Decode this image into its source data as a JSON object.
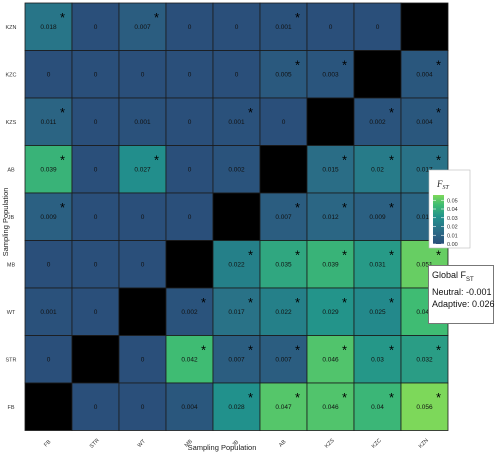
{
  "chart_data": {
    "type": "heatmap",
    "title": "",
    "xlabel": "Sampling Population",
    "ylabel": "Sampling Population",
    "x_categories": [
      "FB",
      "STR",
      "WT",
      "MB",
      "JB",
      "AB",
      "KZS",
      "KZC",
      "KZN"
    ],
    "y_categories": [
      "KZN",
      "KZC",
      "KZS",
      "AB",
      "JB",
      "MB",
      "WT",
      "STR",
      "FB"
    ],
    "rows": [
      {
        "pop": "KZN",
        "labels": [
          "0.018",
          "0",
          "0.007",
          "0",
          "0",
          "0.001",
          "0",
          "0",
          null
        ],
        "values": [
          0.018,
          0,
          0.007,
          0,
          0,
          0.001,
          0,
          0,
          null
        ],
        "stars": [
          true,
          false,
          true,
          false,
          false,
          true,
          false,
          false,
          false
        ]
      },
      {
        "pop": "KZC",
        "labels": [
          "0",
          "0",
          "0",
          "0",
          "0",
          "0.005",
          "0.003",
          null,
          "0.004"
        ],
        "values": [
          0,
          0,
          0,
          0,
          0,
          0.005,
          0.003,
          null,
          0.004
        ],
        "stars": [
          false,
          false,
          false,
          false,
          false,
          true,
          true,
          false,
          true
        ]
      },
      {
        "pop": "KZS",
        "labels": [
          "0.011",
          "0",
          "0.001",
          "0",
          "0.001",
          "0",
          null,
          "0.002",
          "0.004"
        ],
        "values": [
          0.011,
          0,
          0.001,
          0,
          0.001,
          0,
          null,
          0.002,
          0.004
        ],
        "stars": [
          true,
          false,
          false,
          false,
          true,
          false,
          false,
          true,
          true
        ]
      },
      {
        "pop": "AB",
        "labels": [
          "0.039",
          "0",
          "0.027",
          "0",
          "0.002",
          null,
          "0.015",
          "0.02",
          "0.017"
        ],
        "values": [
          0.039,
          0,
          0.027,
          0,
          0.002,
          null,
          0.015,
          0.02,
          0.017
        ],
        "stars": [
          true,
          false,
          true,
          false,
          false,
          false,
          true,
          true,
          true
        ]
      },
      {
        "pop": "JB",
        "labels": [
          "0.009",
          "0",
          "0",
          "0",
          null,
          "0.007",
          "0.012",
          "0.009",
          "0.012"
        ],
        "values": [
          0.009,
          0,
          0,
          0,
          null,
          0.007,
          0.012,
          0.009,
          0.012
        ],
        "stars": [
          true,
          false,
          false,
          false,
          false,
          true,
          true,
          true,
          true
        ]
      },
      {
        "pop": "MB",
        "labels": [
          "0",
          "0",
          "0",
          null,
          "0.022",
          "0.035",
          "0.039",
          "0.031",
          "0.051"
        ],
        "values": [
          0,
          0,
          0,
          null,
          0.022,
          0.035,
          0.039,
          0.031,
          0.051
        ],
        "stars": [
          false,
          false,
          false,
          false,
          true,
          true,
          true,
          true,
          true
        ]
      },
      {
        "pop": "WT",
        "labels": [
          "0.001",
          "0",
          null,
          "0.002",
          "0.017",
          "0.022",
          "0.029",
          "0.025",
          "0.042"
        ],
        "values": [
          0.001,
          0,
          null,
          0.002,
          0.017,
          0.022,
          0.029,
          0.025,
          0.042
        ],
        "stars": [
          false,
          false,
          false,
          true,
          true,
          true,
          true,
          true,
          true
        ]
      },
      {
        "pop": "STR",
        "labels": [
          "0",
          null,
          "0",
          "0.042",
          "0.007",
          "0.007",
          "0.046",
          "0.03",
          "0.032"
        ],
        "values": [
          0,
          null,
          0,
          0.042,
          0.007,
          0.007,
          0.046,
          0.03,
          0.032
        ],
        "stars": [
          false,
          false,
          false,
          true,
          true,
          true,
          true,
          true,
          true
        ]
      },
      {
        "pop": "FB",
        "labels": [
          null,
          "0",
          "0",
          "0.004",
          "0.028",
          "0.047",
          "0.046",
          "0.04",
          "0.056"
        ],
        "values": [
          null,
          0,
          0,
          0.004,
          0.028,
          0.047,
          0.046,
          0.04,
          0.056
        ],
        "stars": [
          false,
          false,
          false,
          false,
          true,
          true,
          true,
          true,
          true
        ]
      }
    ],
    "star_symbol": "*",
    "color_scale": {
      "min": 0,
      "max": 0.056,
      "colors": [
        "#2a4f7a",
        "#2b6a86",
        "#21918c",
        "#3fbc73",
        "#7dd85a"
      ],
      "diagonal": "#000000"
    },
    "legend": {
      "title_main": "F",
      "title_sub": "ST",
      "ticks": [
        "0.00",
        "0.01",
        "0.02",
        "0.03",
        "0.04",
        "0.05"
      ],
      "tick_values": [
        0,
        0.01,
        0.02,
        0.03,
        0.04,
        0.05
      ],
      "placement": "right"
    },
    "global_fst": {
      "title_main": "Global F",
      "title_sub": "ST",
      "neutral": "Neutral: -0.001",
      "adaptive": "Adaptive: 0.026"
    }
  }
}
